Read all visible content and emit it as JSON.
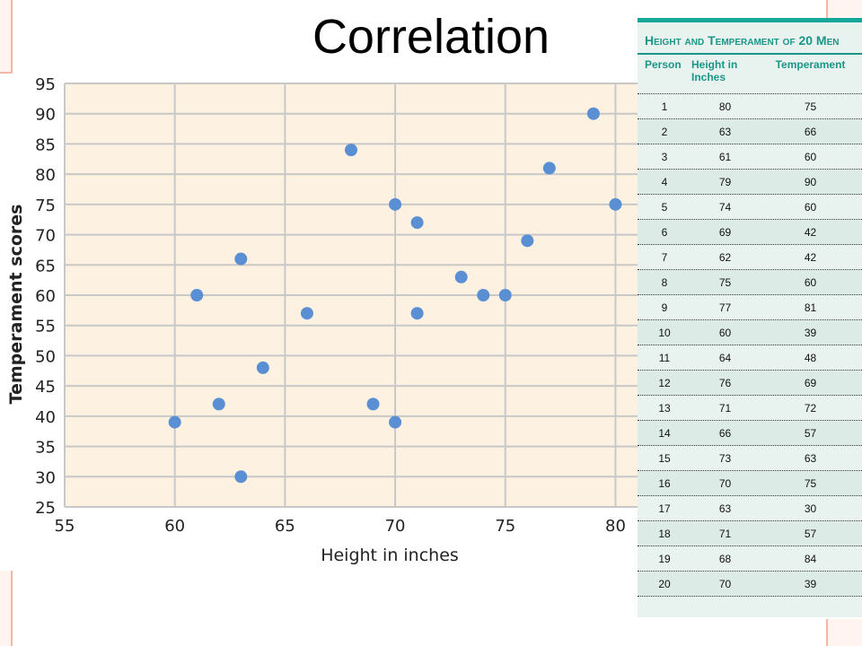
{
  "title": "Correlation",
  "table": {
    "title": "Height and Temperament of 20 Men",
    "headers": {
      "person": "Person",
      "height": "Height in Inches",
      "temperament": "Temperament"
    },
    "rows": [
      {
        "person": "1",
        "height": "80",
        "temperament": "75"
      },
      {
        "person": "2",
        "height": "63",
        "temperament": "66"
      },
      {
        "person": "3",
        "height": "61",
        "temperament": "60"
      },
      {
        "person": "4",
        "height": "79",
        "temperament": "90"
      },
      {
        "person": "5",
        "height": "74",
        "temperament": "60"
      },
      {
        "person": "6",
        "height": "69",
        "temperament": "42"
      },
      {
        "person": "7",
        "height": "62",
        "temperament": "42"
      },
      {
        "person": "8",
        "height": "75",
        "temperament": "60"
      },
      {
        "person": "9",
        "height": "77",
        "temperament": "81"
      },
      {
        "person": "10",
        "height": "60",
        "temperament": "39"
      },
      {
        "person": "11",
        "height": "64",
        "temperament": "48"
      },
      {
        "person": "12",
        "height": "76",
        "temperament": "69"
      },
      {
        "person": "13",
        "height": "71",
        "temperament": "72"
      },
      {
        "person": "14",
        "height": "66",
        "temperament": "57"
      },
      {
        "person": "15",
        "height": "73",
        "temperament": "63"
      },
      {
        "person": "16",
        "height": "70",
        "temperament": "75"
      },
      {
        "person": "17",
        "height": "63",
        "temperament": "30"
      },
      {
        "person": "18",
        "height": "71",
        "temperament": "57"
      },
      {
        "person": "19",
        "height": "68",
        "temperament": "84"
      },
      {
        "person": "20",
        "height": "70",
        "temperament": "39"
      }
    ]
  },
  "chart_data": {
    "type": "scatter",
    "xlabel": "Height in inches",
    "ylabel": "Temperament  scores",
    "xlim": [
      55,
      81
    ],
    "ylim": [
      25,
      95
    ],
    "xticks": [
      55,
      60,
      65,
      70,
      75,
      80
    ],
    "yticks": [
      25,
      30,
      35,
      40,
      45,
      50,
      55,
      60,
      65,
      70,
      75,
      80,
      85,
      90,
      95
    ],
    "grid": true,
    "points": [
      {
        "x": 80,
        "y": 75
      },
      {
        "x": 63,
        "y": 66
      },
      {
        "x": 61,
        "y": 60
      },
      {
        "x": 79,
        "y": 90
      },
      {
        "x": 74,
        "y": 60
      },
      {
        "x": 69,
        "y": 42
      },
      {
        "x": 62,
        "y": 42
      },
      {
        "x": 75,
        "y": 60
      },
      {
        "x": 77,
        "y": 81
      },
      {
        "x": 60,
        "y": 39
      },
      {
        "x": 64,
        "y": 48
      },
      {
        "x": 76,
        "y": 69
      },
      {
        "x": 71,
        "y": 72
      },
      {
        "x": 66,
        "y": 57
      },
      {
        "x": 73,
        "y": 63
      },
      {
        "x": 70,
        "y": 75
      },
      {
        "x": 63,
        "y": 30
      },
      {
        "x": 71,
        "y": 57
      },
      {
        "x": 68,
        "y": 84
      },
      {
        "x": 70,
        "y": 39
      }
    ],
    "colors": {
      "point": "#5b8fd4",
      "plot_bg": "#fdf1e2",
      "grid": "#c8c8c8"
    }
  }
}
